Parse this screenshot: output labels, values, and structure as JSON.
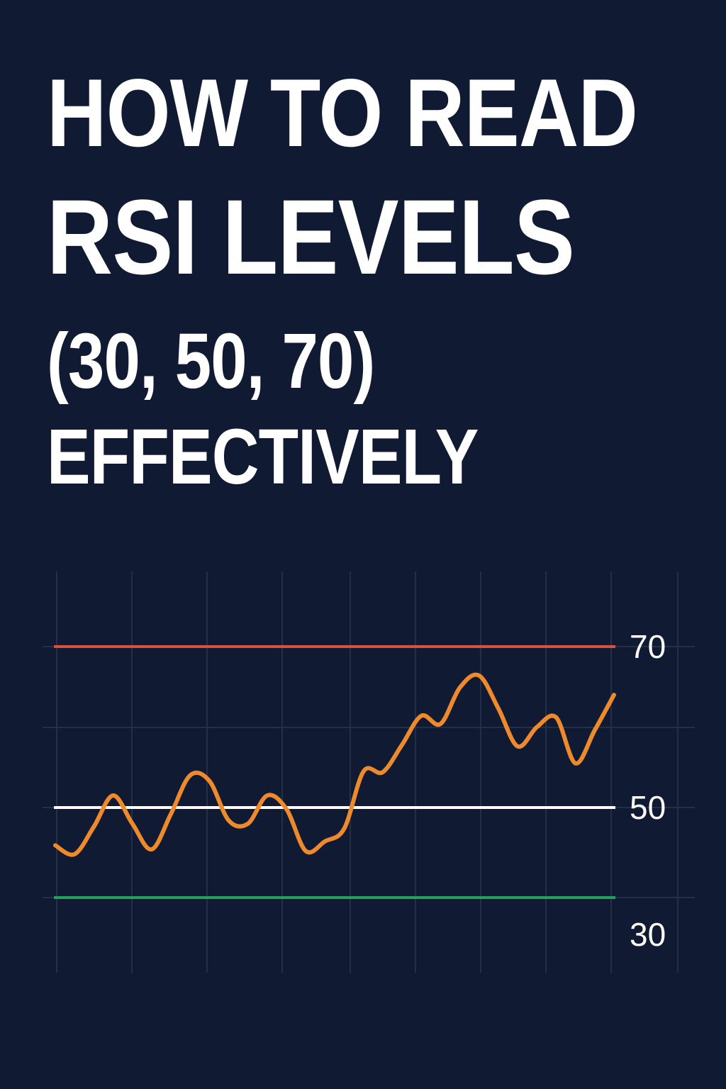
{
  "headline": {
    "line1": "HOW TO READ",
    "line2": "RSI LEVELS",
    "line3": "(30, 50, 70)",
    "line4": "EFFECTIVELY"
  },
  "colors": {
    "background": "#101a33",
    "overbought": "#d9513a",
    "midline": "#ffffff",
    "oversold": "#22a05a",
    "rsi_line": "#ef8a2c",
    "grid": "#24304a"
  },
  "chart_data": {
    "type": "line",
    "title": "",
    "xlabel": "",
    "ylabel": "",
    "ylim": [
      24,
      80
    ],
    "grid": true,
    "reference_lines": [
      {
        "value": 70,
        "label": "70",
        "color": "#d9513a"
      },
      {
        "value": 50,
        "label": "50",
        "color": "#ffffff"
      },
      {
        "value": 30,
        "label": "30",
        "color": "#22a05a"
      }
    ],
    "series": [
      {
        "values": [
          45.3,
          44.2,
          47.6,
          51.5,
          48.0,
          44.8,
          49.2,
          54.0,
          53.3,
          48.4,
          48.0,
          51.5,
          49.8,
          44.6,
          45.8,
          47.4,
          54.5,
          54.4,
          57.8,
          61.4,
          60.4,
          64.9,
          66.4,
          62.3,
          57.6,
          60.0,
          61.2,
          55.5,
          59.6,
          64.0
        ]
      }
    ]
  }
}
